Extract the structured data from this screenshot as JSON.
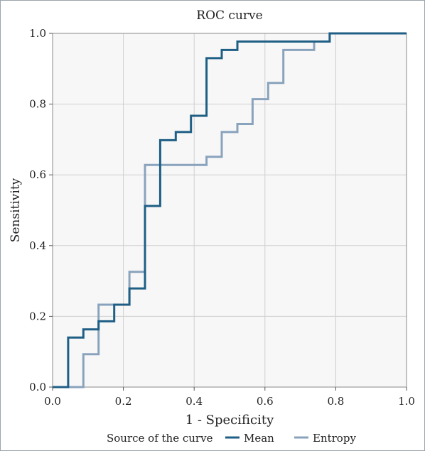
{
  "chart_data": {
    "type": "line",
    "title": "ROC curve",
    "xlabel": "1 - Specificity",
    "ylabel": "Sensitivity",
    "xlim": [
      0,
      1
    ],
    "ylim": [
      0,
      1
    ],
    "xticks": [
      "0.0",
      "0.2",
      "0.4",
      "0.6",
      "0.8",
      "1.0"
    ],
    "yticks": [
      "0.0",
      "0.2",
      "0.4",
      "0.6",
      "0.8",
      "1.0"
    ],
    "grid": true,
    "legend": {
      "title": "Source of the curve",
      "placement": "bottom"
    },
    "series": [
      {
        "name": "Mean",
        "color": "#1f5f86",
        "step": "vertical-first",
        "points": [
          [
            0.0,
            0.0
          ],
          [
            0.044,
            0.0
          ],
          [
            0.044,
            0.14
          ],
          [
            0.087,
            0.14
          ],
          [
            0.087,
            0.163
          ],
          [
            0.13,
            0.163
          ],
          [
            0.13,
            0.186
          ],
          [
            0.174,
            0.186
          ],
          [
            0.174,
            0.233
          ],
          [
            0.217,
            0.233
          ],
          [
            0.217,
            0.279
          ],
          [
            0.261,
            0.279
          ],
          [
            0.261,
            0.512
          ],
          [
            0.304,
            0.512
          ],
          [
            0.304,
            0.698
          ],
          [
            0.348,
            0.698
          ],
          [
            0.348,
            0.721
          ],
          [
            0.391,
            0.721
          ],
          [
            0.391,
            0.767
          ],
          [
            0.435,
            0.767
          ],
          [
            0.435,
            0.93
          ],
          [
            0.478,
            0.93
          ],
          [
            0.478,
            0.953
          ],
          [
            0.522,
            0.953
          ],
          [
            0.522,
            0.977
          ],
          [
            0.739,
            0.977
          ],
          [
            0.739,
            0.977
          ],
          [
            0.783,
            0.977
          ],
          [
            0.783,
            1.0
          ],
          [
            1.0,
            1.0
          ]
        ]
      },
      {
        "name": "Entropy",
        "color": "#8aa3bd",
        "points": [
          [
            0.0,
            0.0
          ],
          [
            0.087,
            0.0
          ],
          [
            0.087,
            0.093
          ],
          [
            0.13,
            0.093
          ],
          [
            0.13,
            0.233
          ],
          [
            0.217,
            0.233
          ],
          [
            0.217,
            0.326
          ],
          [
            0.261,
            0.326
          ],
          [
            0.261,
            0.628
          ],
          [
            0.435,
            0.628
          ],
          [
            0.435,
            0.651
          ],
          [
            0.478,
            0.651
          ],
          [
            0.478,
            0.721
          ],
          [
            0.522,
            0.721
          ],
          [
            0.522,
            0.744
          ],
          [
            0.565,
            0.744
          ],
          [
            0.565,
            0.814
          ],
          [
            0.609,
            0.814
          ],
          [
            0.609,
            0.86
          ],
          [
            0.652,
            0.86
          ],
          [
            0.652,
            0.953
          ],
          [
            0.739,
            0.953
          ],
          [
            0.739,
            0.977
          ],
          [
            0.783,
            0.977
          ],
          [
            0.783,
            1.0
          ],
          [
            1.0,
            1.0
          ]
        ]
      }
    ]
  }
}
